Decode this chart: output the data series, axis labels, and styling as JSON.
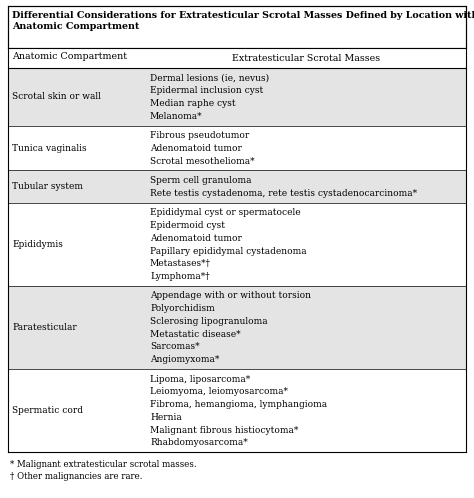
{
  "title_line1": "Differential Considerations for Extratesticular Scrotal Masses Defined by Location within an",
  "title_line2": "Anatomic Compartment",
  "col1_header": "Anatomic Compartment",
  "col2_header": "Extratesticular Scrotal Masses",
  "rows": [
    {
      "compartment": "Scrotal skin or wall",
      "masses": [
        "Dermal lesions (ie, nevus)",
        "Epidermal inclusion cyst",
        "Median raphe cyst",
        "Melanoma*"
      ],
      "shaded": true
    },
    {
      "compartment": "Tunica vaginalis",
      "masses": [
        "Fibrous pseudotumor",
        "Adenomatoid tumor",
        "Scrotal mesothelioma*"
      ],
      "shaded": false
    },
    {
      "compartment": "Tubular system",
      "masses": [
        "Sperm cell granuloma",
        "Rete testis cystadenoma, rete testis cystadenocarcinoma*"
      ],
      "shaded": true
    },
    {
      "compartment": "Epididymis",
      "masses": [
        "Epididymal cyst or spermatocele",
        "Epidermoid cyst",
        "Adenomatoid tumor",
        "Papillary epididymal cystadenoma",
        "Metastases*†",
        "Lymphoma*†"
      ],
      "shaded": false
    },
    {
      "compartment": "Paratesticular",
      "masses": [
        "Appendage with or without torsion",
        "Polyorchidism",
        "Sclerosing lipogranuloma",
        "Metastatic disease*",
        "Sarcomas*",
        "Angiomyxoma*"
      ],
      "shaded": true
    },
    {
      "compartment": "Spermatic cord",
      "masses": [
        "Lipoma, liposarcoma*",
        "Leiomyoma, leiomyosarcoma*",
        "Fibroma, hemangioma, lymphangioma",
        "Hernia",
        "Malignant fibrous histiocytoma*",
        "Rhabdomyosarcoma*"
      ],
      "shaded": false
    }
  ],
  "footnotes": [
    "* Malignant extratesticular scrotal masses.",
    "† Other malignancies are rare."
  ],
  "bg_color": "#ffffff",
  "shaded_color": "#e4e4e4",
  "border_color": "#000000",
  "text_color": "#000000",
  "title_fontsize": 6.8,
  "header_fontsize": 6.8,
  "cell_fontsize": 6.5,
  "footnote_fontsize": 6.2
}
